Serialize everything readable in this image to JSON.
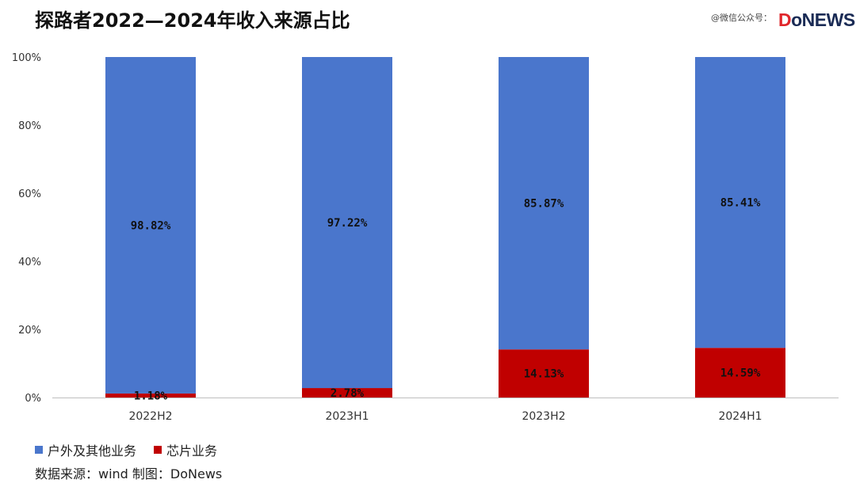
{
  "title": "探路者2022—2024年收入来源占比",
  "watermark": "@微信公众号：",
  "logo": {
    "d": "D",
    "rest": "oNEWS"
  },
  "source_text": "数据来源：wind   制图：DoNews",
  "colors": {
    "outdoor": "#4a76cc",
    "chip": "#c00000",
    "axis": "#bfbfbf"
  },
  "chart_data": {
    "type": "bar",
    "stacked": true,
    "categories": [
      "2022H2",
      "2023H1",
      "2023H2",
      "2024H1"
    ],
    "series": [
      {
        "name": "户外及其他业务",
        "values": [
          98.82,
          97.22,
          85.87,
          85.41
        ],
        "labels": [
          "98.82%",
          "97.22%",
          "85.87%",
          "85.41%"
        ]
      },
      {
        "name": "芯片业务",
        "values": [
          1.18,
          2.78,
          14.13,
          14.59
        ],
        "labels": [
          "1.18%",
          "2.78%",
          "14.13%",
          "14.59%"
        ]
      }
    ],
    "yticks": [
      "0%",
      "20%",
      "40%",
      "60%",
      "80%",
      "100%"
    ],
    "ylim": [
      0,
      100
    ],
    "legend_position": "bottom-left",
    "grid": false
  }
}
